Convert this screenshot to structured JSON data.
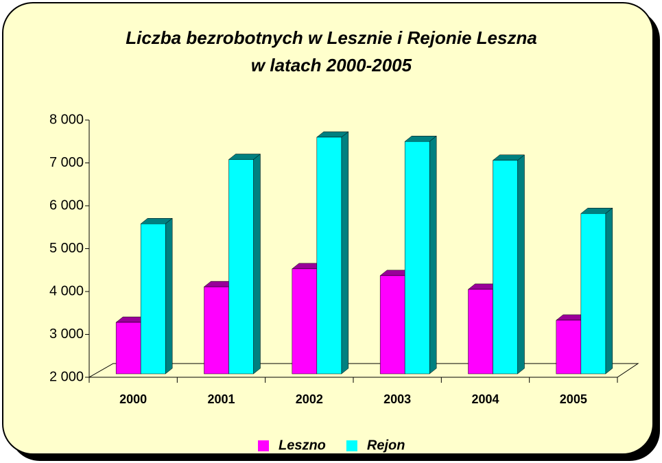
{
  "chart_data": {
    "type": "bar3d",
    "title": [
      "Liczba bezrobotnych w Lesznie i Rejonie Leszna",
      "w latach 2000-2005"
    ],
    "categories": [
      "2000",
      "2001",
      "2002",
      "2003",
      "2004",
      "2005"
    ],
    "series": [
      {
        "name": "Leszno",
        "color": "#ff00ff",
        "side_color": "#990099",
        "values": [
          3200,
          4030,
          4450,
          4290,
          3970,
          3250
        ]
      },
      {
        "name": "Rejon",
        "color": "#00ffff",
        "side_color": "#008080",
        "values": [
          5500,
          7000,
          7520,
          7420,
          6980,
          5740
        ]
      }
    ],
    "ylim": [
      2000,
      8000
    ],
    "yticks": [
      {
        "value": 2000,
        "label": "2 000"
      },
      {
        "value": 3000,
        "label": "3 000"
      },
      {
        "value": 4000,
        "label": "4 000"
      },
      {
        "value": 5000,
        "label": "5 000"
      },
      {
        "value": 6000,
        "label": "6 000"
      },
      {
        "value": 7000,
        "label": "7 000"
      },
      {
        "value": 8000,
        "label": "8 000"
      }
    ],
    "legend": "bottom"
  }
}
